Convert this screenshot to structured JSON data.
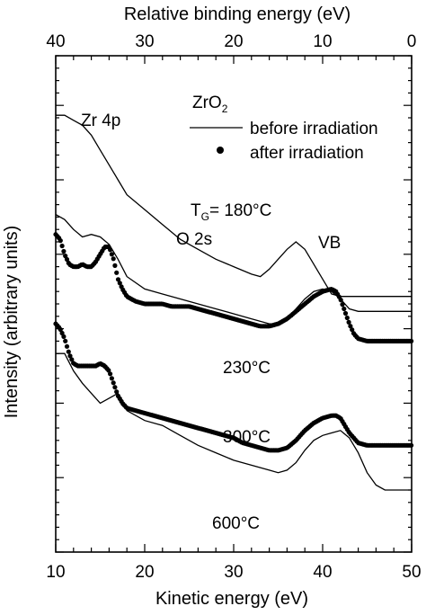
{
  "chart_data": {
    "type": "line",
    "xlabel": "Kinetic energy (eV)",
    "x2label": "Relative binding energy (eV)",
    "ylabel": "Intensity (arbitrary units)",
    "xlim": [
      10,
      50
    ],
    "x2lim": [
      40,
      0
    ],
    "ylim": [
      0,
      100
    ],
    "grid": false,
    "x_ticks": [
      10,
      20,
      30,
      40,
      50
    ],
    "x_tick_labels": [
      "10",
      "20",
      "30",
      "40",
      "50"
    ],
    "x2_ticks": [
      40,
      30,
      20,
      10,
      0
    ],
    "x2_tick_labels": [
      "40",
      "30",
      "20",
      "10",
      "0"
    ],
    "legend": {
      "position": "top-right",
      "title_main": "ZrO",
      "title_sub": "2",
      "line_label": "before irradiation",
      "dot_label": "after irradiation"
    },
    "annotations": {
      "zr4p": "Zr 4p",
      "o2s": "O 2s",
      "vb": "VB",
      "tg_main": "T",
      "tg_sub": "G",
      "tg_rest": "= 180°C",
      "t230": "230°C",
      "t300": "300°C",
      "t600": "600°C"
    },
    "series": [
      {
        "style": "line",
        "x": [
          10,
          11,
          12,
          13,
          14,
          15,
          16,
          17,
          18,
          20,
          22,
          24,
          26,
          28,
          30,
          32,
          33,
          34,
          35,
          36,
          37,
          38,
          39,
          40,
          41,
          42,
          44,
          50
        ],
        "y": [
          88,
          88,
          87,
          86,
          84,
          81,
          78,
          75,
          72,
          69,
          66,
          63,
          61,
          59,
          57.5,
          56,
          55.5,
          57,
          59,
          61,
          62.5,
          61,
          58,
          55,
          52,
          51.5,
          51.5,
          51.5
        ]
      },
      {
        "style": "line",
        "x": [
          10,
          11,
          12,
          13,
          14,
          15,
          16,
          17,
          18,
          20,
          22,
          24,
          26,
          28,
          30,
          32,
          34,
          35,
          36,
          37,
          38,
          39,
          40,
          41,
          42,
          43,
          44,
          50
        ],
        "y": [
          68,
          67,
          65,
          63.5,
          64,
          63.5,
          62,
          59,
          55.5,
          53,
          52,
          51,
          50,
          49,
          48,
          47,
          46,
          46,
          47,
          49,
          51,
          52.5,
          53,
          52.5,
          51,
          49,
          48.5,
          48.5
        ]
      },
      {
        "style": "dots",
        "x": [
          10,
          10.5,
          11,
          11.5,
          12,
          12.5,
          13,
          13.5,
          14,
          14.5,
          15,
          15.5,
          16,
          16.5,
          17,
          17.5,
          18,
          19,
          20,
          21,
          22,
          23,
          24,
          25,
          26,
          27,
          28,
          29,
          30,
          31,
          32,
          33,
          34,
          35,
          36,
          37,
          38,
          39,
          40,
          41,
          41.5,
          42,
          42.5,
          43,
          43.5,
          44,
          45,
          46,
          47,
          48,
          49,
          50
        ],
        "y": [
          64,
          63,
          60,
          58,
          57.5,
          57.5,
          58,
          57.5,
          57.5,
          58.5,
          60,
          61.5,
          61.5,
          59,
          55,
          53,
          51.5,
          50.5,
          50,
          50,
          50,
          49.5,
          49.5,
          49.5,
          49,
          48.5,
          48,
          47.5,
          47,
          46.5,
          46,
          45.5,
          45.5,
          46,
          47,
          48.5,
          50,
          51.5,
          52.5,
          53,
          52.5,
          51,
          48.5,
          46,
          44,
          43,
          42.5,
          42.5,
          42.5,
          42.5,
          42.5,
          42.5
        ]
      },
      {
        "style": "dots",
        "x": [
          10,
          10.5,
          11,
          11.5,
          12,
          12.5,
          13,
          13.5,
          14,
          14.5,
          15,
          15.5,
          16,
          16.5,
          17,
          17.5,
          18,
          19,
          20,
          21,
          22,
          23,
          24,
          25,
          26,
          27,
          28,
          29,
          30,
          31,
          32,
          33,
          34,
          35,
          36,
          37,
          38,
          39,
          40,
          41,
          41.5,
          42,
          42.5,
          43,
          43.5,
          44,
          45,
          46,
          47,
          48,
          50
        ],
        "y": [
          46,
          45,
          43,
          40,
          38,
          37.5,
          37.5,
          37.5,
          37.5,
          37.5,
          38,
          37.5,
          36.5,
          34,
          31.5,
          30,
          29,
          28.5,
          28,
          27.5,
          27,
          26.5,
          26,
          25.5,
          25,
          24.5,
          24,
          23.5,
          23,
          22,
          21.5,
          21,
          20.5,
          20.5,
          21,
          22.5,
          24.5,
          26,
          27,
          27.5,
          27.5,
          27,
          25.5,
          24,
          23,
          22,
          21.5,
          21.5,
          21.5,
          21.5,
          21.5
        ]
      },
      {
        "style": "line",
        "x": [
          10,
          11,
          12,
          13,
          14,
          15,
          16,
          17,
          18,
          20,
          22,
          24,
          26,
          28,
          30,
          32,
          34,
          35,
          36,
          37,
          38,
          39,
          40,
          41,
          42,
          43,
          44,
          45,
          46,
          47,
          48,
          50
        ],
        "y": [
          40,
          40,
          36.5,
          34,
          32,
          30,
          31,
          32,
          28.5,
          26.5,
          25.5,
          23.5,
          21.5,
          20,
          18.5,
          17.5,
          16.5,
          16,
          16.5,
          18,
          20.5,
          22.5,
          23.5,
          24,
          24.5,
          23,
          20,
          16,
          13.5,
          12.5,
          12.5,
          12.5
        ]
      }
    ]
  }
}
